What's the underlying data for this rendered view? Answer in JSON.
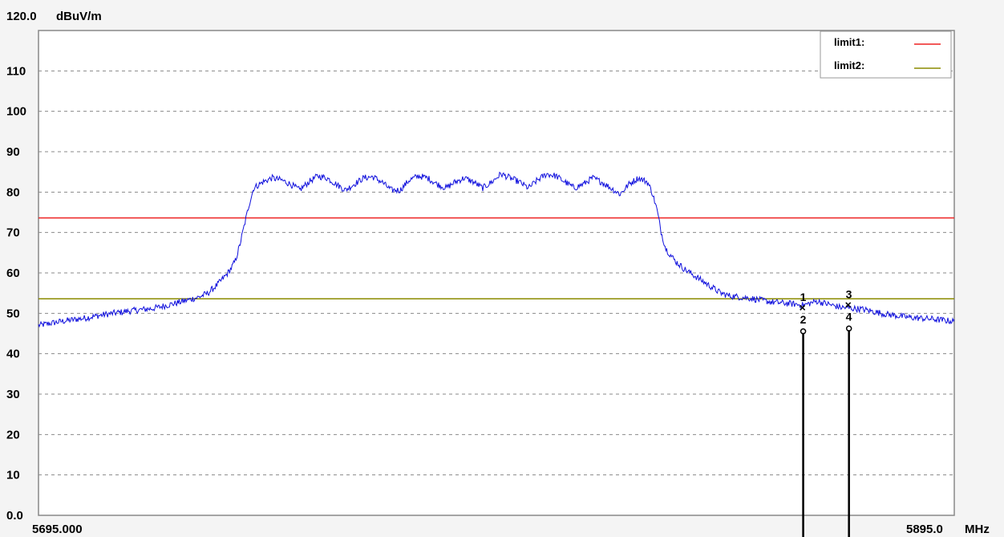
{
  "chart_data": {
    "type": "line",
    "title": "",
    "xlabel": "",
    "ylabel": "",
    "y_unit": "dBuV/m",
    "x_unit": "MHz",
    "xlim": [
      5695.0,
      5895.0
    ],
    "ylim": [
      0,
      120
    ],
    "x_start_label": "5695.000",
    "x_end_label": "5895.0",
    "y_top_label": "120.0",
    "y_tick_labels": [
      {
        "value": 110,
        "label": "110"
      },
      {
        "value": 100,
        "label": "100"
      },
      {
        "value": 90,
        "label": "90"
      },
      {
        "value": 80,
        "label": "80"
      },
      {
        "value": 70,
        "label": "70"
      },
      {
        "value": 60,
        "label": "60"
      },
      {
        "value": 50,
        "label": "50"
      },
      {
        "value": 40,
        "label": "40"
      },
      {
        "value": 30,
        "label": "30"
      },
      {
        "value": 20,
        "label": "20"
      },
      {
        "value": 10,
        "label": "10"
      },
      {
        "value": 0,
        "label": "0.0"
      }
    ],
    "grid": true,
    "legend_position": "top-right",
    "limits": [
      {
        "name": "limit1:",
        "value": 73.6,
        "color": "#ee2222"
      },
      {
        "name": "limit2:",
        "value": 53.6,
        "color": "#8b8b00"
      }
    ],
    "series": [
      {
        "color": "#1010dd",
        "points": [
          [
            5695,
            47.0
          ],
          [
            5700,
            48.0
          ],
          [
            5705,
            48.8
          ],
          [
            5710,
            49.8
          ],
          [
            5715,
            50.6
          ],
          [
            5720,
            51.2
          ],
          [
            5725,
            52.5
          ],
          [
            5730,
            54.0
          ],
          [
            5732,
            55.0
          ],
          [
            5734,
            57.0
          ],
          [
            5736,
            59.5
          ],
          [
            5737,
            61.0
          ],
          [
            5738,
            63.0
          ],
          [
            5739,
            67.0
          ],
          [
            5740,
            72.0
          ],
          [
            5741,
            77.0
          ],
          [
            5742,
            81.0
          ],
          [
            5744,
            82.5
          ],
          [
            5746,
            83.5
          ],
          [
            5748,
            83.0
          ],
          [
            5750,
            82.0
          ],
          [
            5752,
            80.5
          ],
          [
            5754,
            82.5
          ],
          [
            5756,
            84.0
          ],
          [
            5758,
            83.5
          ],
          [
            5760,
            82.0
          ],
          [
            5762,
            80.5
          ],
          [
            5764,
            82.0
          ],
          [
            5766,
            83.5
          ],
          [
            5768,
            83.8
          ],
          [
            5770,
            82.5
          ],
          [
            5772,
            80.5
          ],
          [
            5774,
            80.5
          ],
          [
            5776,
            83.0
          ],
          [
            5778,
            84.0
          ],
          [
            5780,
            83.5
          ],
          [
            5782,
            82.0
          ],
          [
            5784,
            81.0
          ],
          [
            5786,
            82.5
          ],
          [
            5788,
            83.5
          ],
          [
            5790,
            82.5
          ],
          [
            5792,
            81.0
          ],
          [
            5794,
            82.5
          ],
          [
            5796,
            84.5
          ],
          [
            5798,
            83.5
          ],
          [
            5800,
            82.5
          ],
          [
            5802,
            81.0
          ],
          [
            5804,
            83.0
          ],
          [
            5806,
            84.5
          ],
          [
            5808,
            84.0
          ],
          [
            5810,
            82.5
          ],
          [
            5812,
            81.0
          ],
          [
            5814,
            82.0
          ],
          [
            5816,
            83.5
          ],
          [
            5818,
            82.5
          ],
          [
            5820,
            81.0
          ],
          [
            5822,
            79.5
          ],
          [
            5824,
            82.0
          ],
          [
            5826,
            83.5
          ],
          [
            5828,
            82.5
          ],
          [
            5829,
            80.0
          ],
          [
            5830,
            76.0
          ],
          [
            5831,
            70.0
          ],
          [
            5832,
            66.0
          ],
          [
            5834,
            63.0
          ],
          [
            5836,
            61.0
          ],
          [
            5838,
            59.5
          ],
          [
            5840,
            58.0
          ],
          [
            5842,
            56.5
          ],
          [
            5844,
            55.0
          ],
          [
            5846,
            54.3
          ],
          [
            5850,
            53.8
          ],
          [
            5855,
            52.8
          ],
          [
            5860,
            52.3
          ],
          [
            5862,
            52.0
          ],
          [
            5865,
            53.0
          ],
          [
            5870,
            51.5
          ],
          [
            5875,
            51.0
          ],
          [
            5880,
            49.8
          ],
          [
            5885,
            49.0
          ],
          [
            5890,
            48.6
          ],
          [
            5895,
            48.0
          ]
        ]
      }
    ],
    "markers": [
      {
        "x": 5862,
        "y": 51.5,
        "top": "1",
        "bottom": "2"
      },
      {
        "x": 5872,
        "y": 52.2,
        "top": "3",
        "bottom": "4"
      }
    ]
  }
}
